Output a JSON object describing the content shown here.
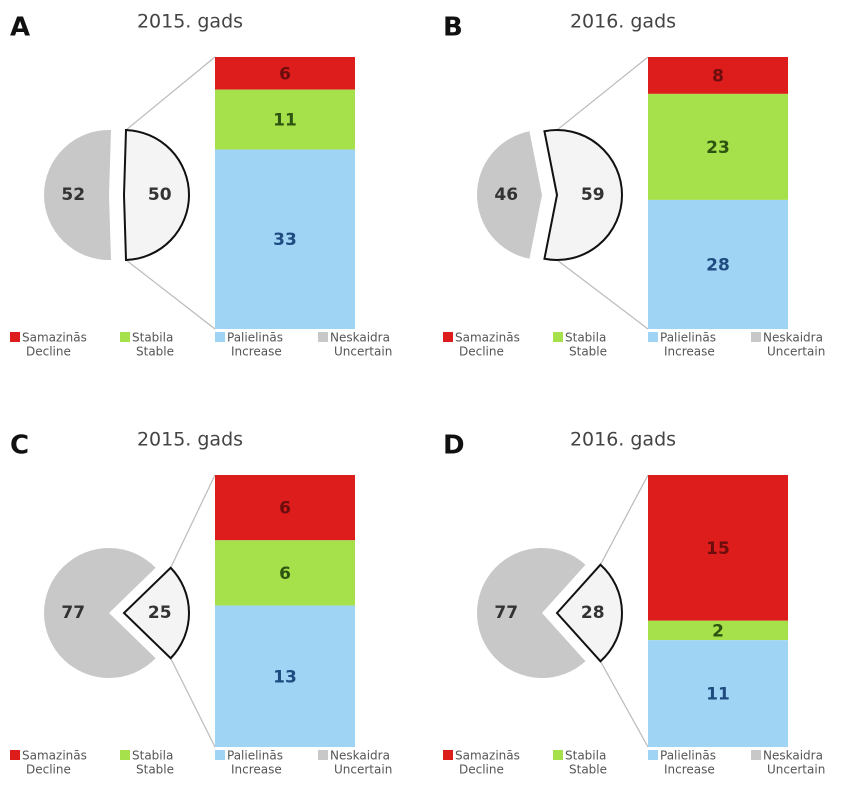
{
  "chart_data": [
    {
      "type": "pie-bar",
      "panel": "A",
      "title": "2015. gads",
      "pie": {
        "values": [
          52,
          50
        ],
        "colors": [
          "#c8c8c8",
          "#f4f4f4"
        ]
      },
      "bar": {
        "values": [
          6,
          11,
          33
        ],
        "colors": [
          "#dd1c1c",
          "#a6e04a",
          "#9fd4f5"
        ],
        "label_colors": [
          "#6b0d0d",
          "#2d5410",
          "#1f4c80"
        ]
      },
      "legend": [
        {
          "name": "Samazinās",
          "translation": "Decline",
          "color": "#dd1c1c"
        },
        {
          "name": "Stabila",
          "translation": "Stable",
          "color": "#a6e04a"
        },
        {
          "name": "Palielinās",
          "translation": "Increase",
          "color": "#9fd4f5"
        },
        {
          "name": "Neskaidra",
          "translation": "Uncertain",
          "color": "#c8c8c8"
        }
      ]
    },
    {
      "type": "pie-bar",
      "panel": "B",
      "title": "2016. gads",
      "pie": {
        "values": [
          46,
          59
        ],
        "colors": [
          "#c8c8c8",
          "#f4f4f4"
        ]
      },
      "bar": {
        "values": [
          8,
          23,
          28
        ],
        "colors": [
          "#dd1c1c",
          "#a6e04a",
          "#9fd4f5"
        ],
        "label_colors": [
          "#6b0d0d",
          "#2d5410",
          "#1f4c80"
        ]
      },
      "legend": [
        {
          "name": "Samazinās",
          "translation": "Decline",
          "color": "#dd1c1c"
        },
        {
          "name": "Stabila",
          "translation": "Stable",
          "color": "#a6e04a"
        },
        {
          "name": "Palielinās",
          "translation": "Increase",
          "color": "#9fd4f5"
        },
        {
          "name": "Neskaidra",
          "translation": "Uncertain",
          "color": "#c8c8c8"
        }
      ]
    },
    {
      "type": "pie-bar",
      "panel": "C",
      "title": "2015. gads",
      "pie": {
        "values": [
          77,
          25
        ],
        "colors": [
          "#c8c8c8",
          "#f4f4f4"
        ]
      },
      "bar": {
        "values": [
          6,
          6,
          13
        ],
        "colors": [
          "#dd1c1c",
          "#a6e04a",
          "#9fd4f5"
        ],
        "label_colors": [
          "#6b0d0d",
          "#2d5410",
          "#1f4c80"
        ]
      },
      "legend": [
        {
          "name": "Samazinās",
          "translation": "Decline",
          "color": "#dd1c1c"
        },
        {
          "name": "Stabila",
          "translation": "Stable",
          "color": "#a6e04a"
        },
        {
          "name": "Palielinās",
          "translation": "Increase",
          "color": "#9fd4f5"
        },
        {
          "name": "Neskaidra",
          "translation": "Uncertain",
          "color": "#c8c8c8"
        }
      ]
    },
    {
      "type": "pie-bar",
      "panel": "D",
      "title": "2016. gads",
      "pie": {
        "values": [
          77,
          28
        ],
        "colors": [
          "#c8c8c8",
          "#f4f4f4"
        ]
      },
      "bar": {
        "values": [
          15,
          2,
          11
        ],
        "colors": [
          "#dd1c1c",
          "#a6e04a",
          "#9fd4f5"
        ],
        "label_colors": [
          "#6b0d0d",
          "#2d5410",
          "#1f4c80"
        ]
      },
      "legend": [
        {
          "name": "Samazinās",
          "translation": "Decline",
          "color": "#dd1c1c"
        },
        {
          "name": "Stabila",
          "translation": "Stable",
          "color": "#a6e04a"
        },
        {
          "name": "Palielinās",
          "translation": "Increase",
          "color": "#9fd4f5"
        },
        {
          "name": "Neskaidra",
          "translation": "Uncertain",
          "color": "#c8c8c8"
        }
      ]
    }
  ]
}
